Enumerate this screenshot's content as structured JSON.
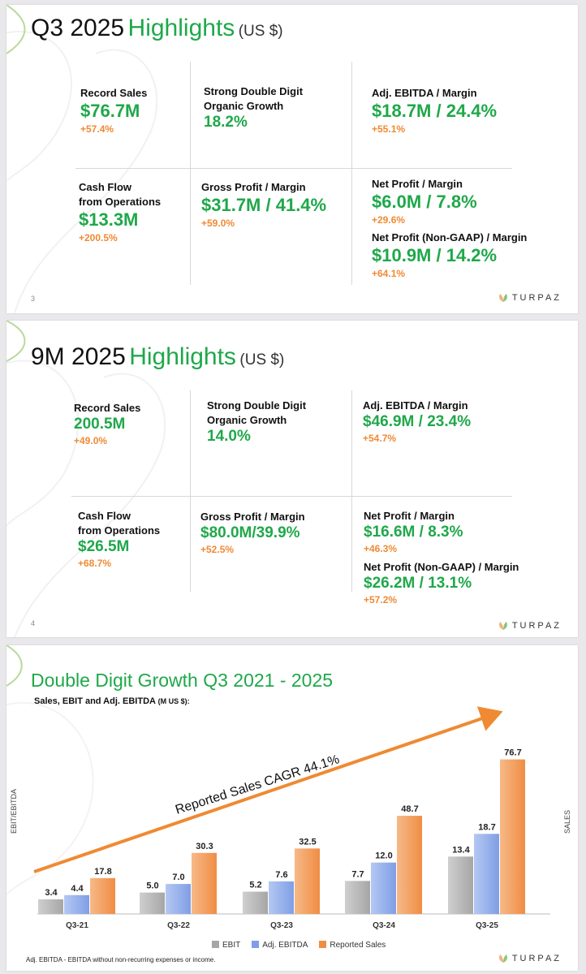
{
  "brand": {
    "name": "TURPAZ"
  },
  "slide_q3": {
    "number": "3",
    "title_black": "Q3 2025",
    "title_green": "Highlights",
    "title_unit": "(US $)",
    "kpis": {
      "record_sales": {
        "label": "Record Sales",
        "value": "$76.7M",
        "change": "+57.4%"
      },
      "organic_growth": {
        "label": "Strong Double Digit\nOrganic Growth",
        "value": "18.2%"
      },
      "adj_ebitda": {
        "label": "Adj. EBITDA / Margin",
        "value": "$18.7M / 24.4%",
        "change": "+55.1%"
      },
      "cash_flow": {
        "label": "Cash Flow\nfrom Operations",
        "value": "$13.3M",
        "change": "+200.5%"
      },
      "gross_profit": {
        "label": "Gross Profit / Margin",
        "value": "$31.7M / 41.4%",
        "change": "+59.0%"
      },
      "net_profit": {
        "label": "Net Profit / Margin",
        "value": "$6.0M / 7.8%",
        "change": "+29.6%"
      },
      "net_profit_nongaap": {
        "label": "Net Profit (Non-GAAP) / Margin",
        "value": "$10.9M / 14.2%",
        "change": "+64.1%"
      }
    }
  },
  "slide_9m": {
    "number": "4",
    "title_black": "9M 2025",
    "title_green": "Highlights",
    "title_unit": "(US $)",
    "kpis": {
      "record_sales": {
        "label": "Record Sales",
        "value": "200.5M",
        "change": "+49.0%"
      },
      "organic_growth": {
        "label": "Strong Double Digit\nOrganic Growth",
        "value": "14.0%"
      },
      "adj_ebitda": {
        "label": "Adj. EBITDA / Margin",
        "value": "$46.9M / 23.4%",
        "change": "+54.7%"
      },
      "cash_flow": {
        "label": "Cash Flow\nfrom Operations",
        "value": "$26.5M",
        "change": "+68.7%"
      },
      "gross_profit": {
        "label": "Gross Profit / Margin",
        "value": "$80.0M/39.9%",
        "change": "+52.5%"
      },
      "net_profit": {
        "label": "Net Profit / Margin",
        "value": "$16.6M / 8.3%",
        "change": "+46.3%"
      },
      "net_profit_nongaap": {
        "label": "Net Profit (Non-GAAP) / Margin",
        "value": "$26.2M / 13.1%",
        "change": "+57.2%"
      }
    }
  },
  "slide_chart": {
    "footnote": "Adj. EBITDA  - EBITDA without non-recurring expenses or income.",
    "colors": {
      "ebit": "#a6a6a6",
      "adj_ebitda": "#7f9ee5",
      "sales": "#f08d44",
      "arrow": "#ef8a33"
    }
  },
  "chart_data": {
    "type": "bar",
    "title": "Double Digit Growth Q3 2021 - 2025",
    "subtitle": "Sales, EBIT and Adj. EBITDA",
    "subtitle_unit": "(M US $):",
    "ylabel_left": "EBIT/EBITDA",
    "ylabel_right": "SALES",
    "categories": [
      "Q3-21",
      "Q3-22",
      "Q3-23",
      "Q3-24",
      "Q3-25"
    ],
    "series": [
      {
        "name": "EBIT",
        "values": [
          3.4,
          5.0,
          5.2,
          7.7,
          13.4
        ]
      },
      {
        "name": "Adj. EBITDA",
        "values": [
          4.4,
          7.0,
          7.6,
          12.0,
          18.7
        ]
      },
      {
        "name": "Reported Sales",
        "values": [
          17.8,
          30.3,
          32.5,
          48.7,
          76.7
        ]
      }
    ],
    "ylim_left": [
      0,
      40
    ],
    "ylim_right": [
      0,
      85
    ],
    "annotation": "Reported Sales CAGR 44.1%",
    "legend_position": "bottom"
  }
}
